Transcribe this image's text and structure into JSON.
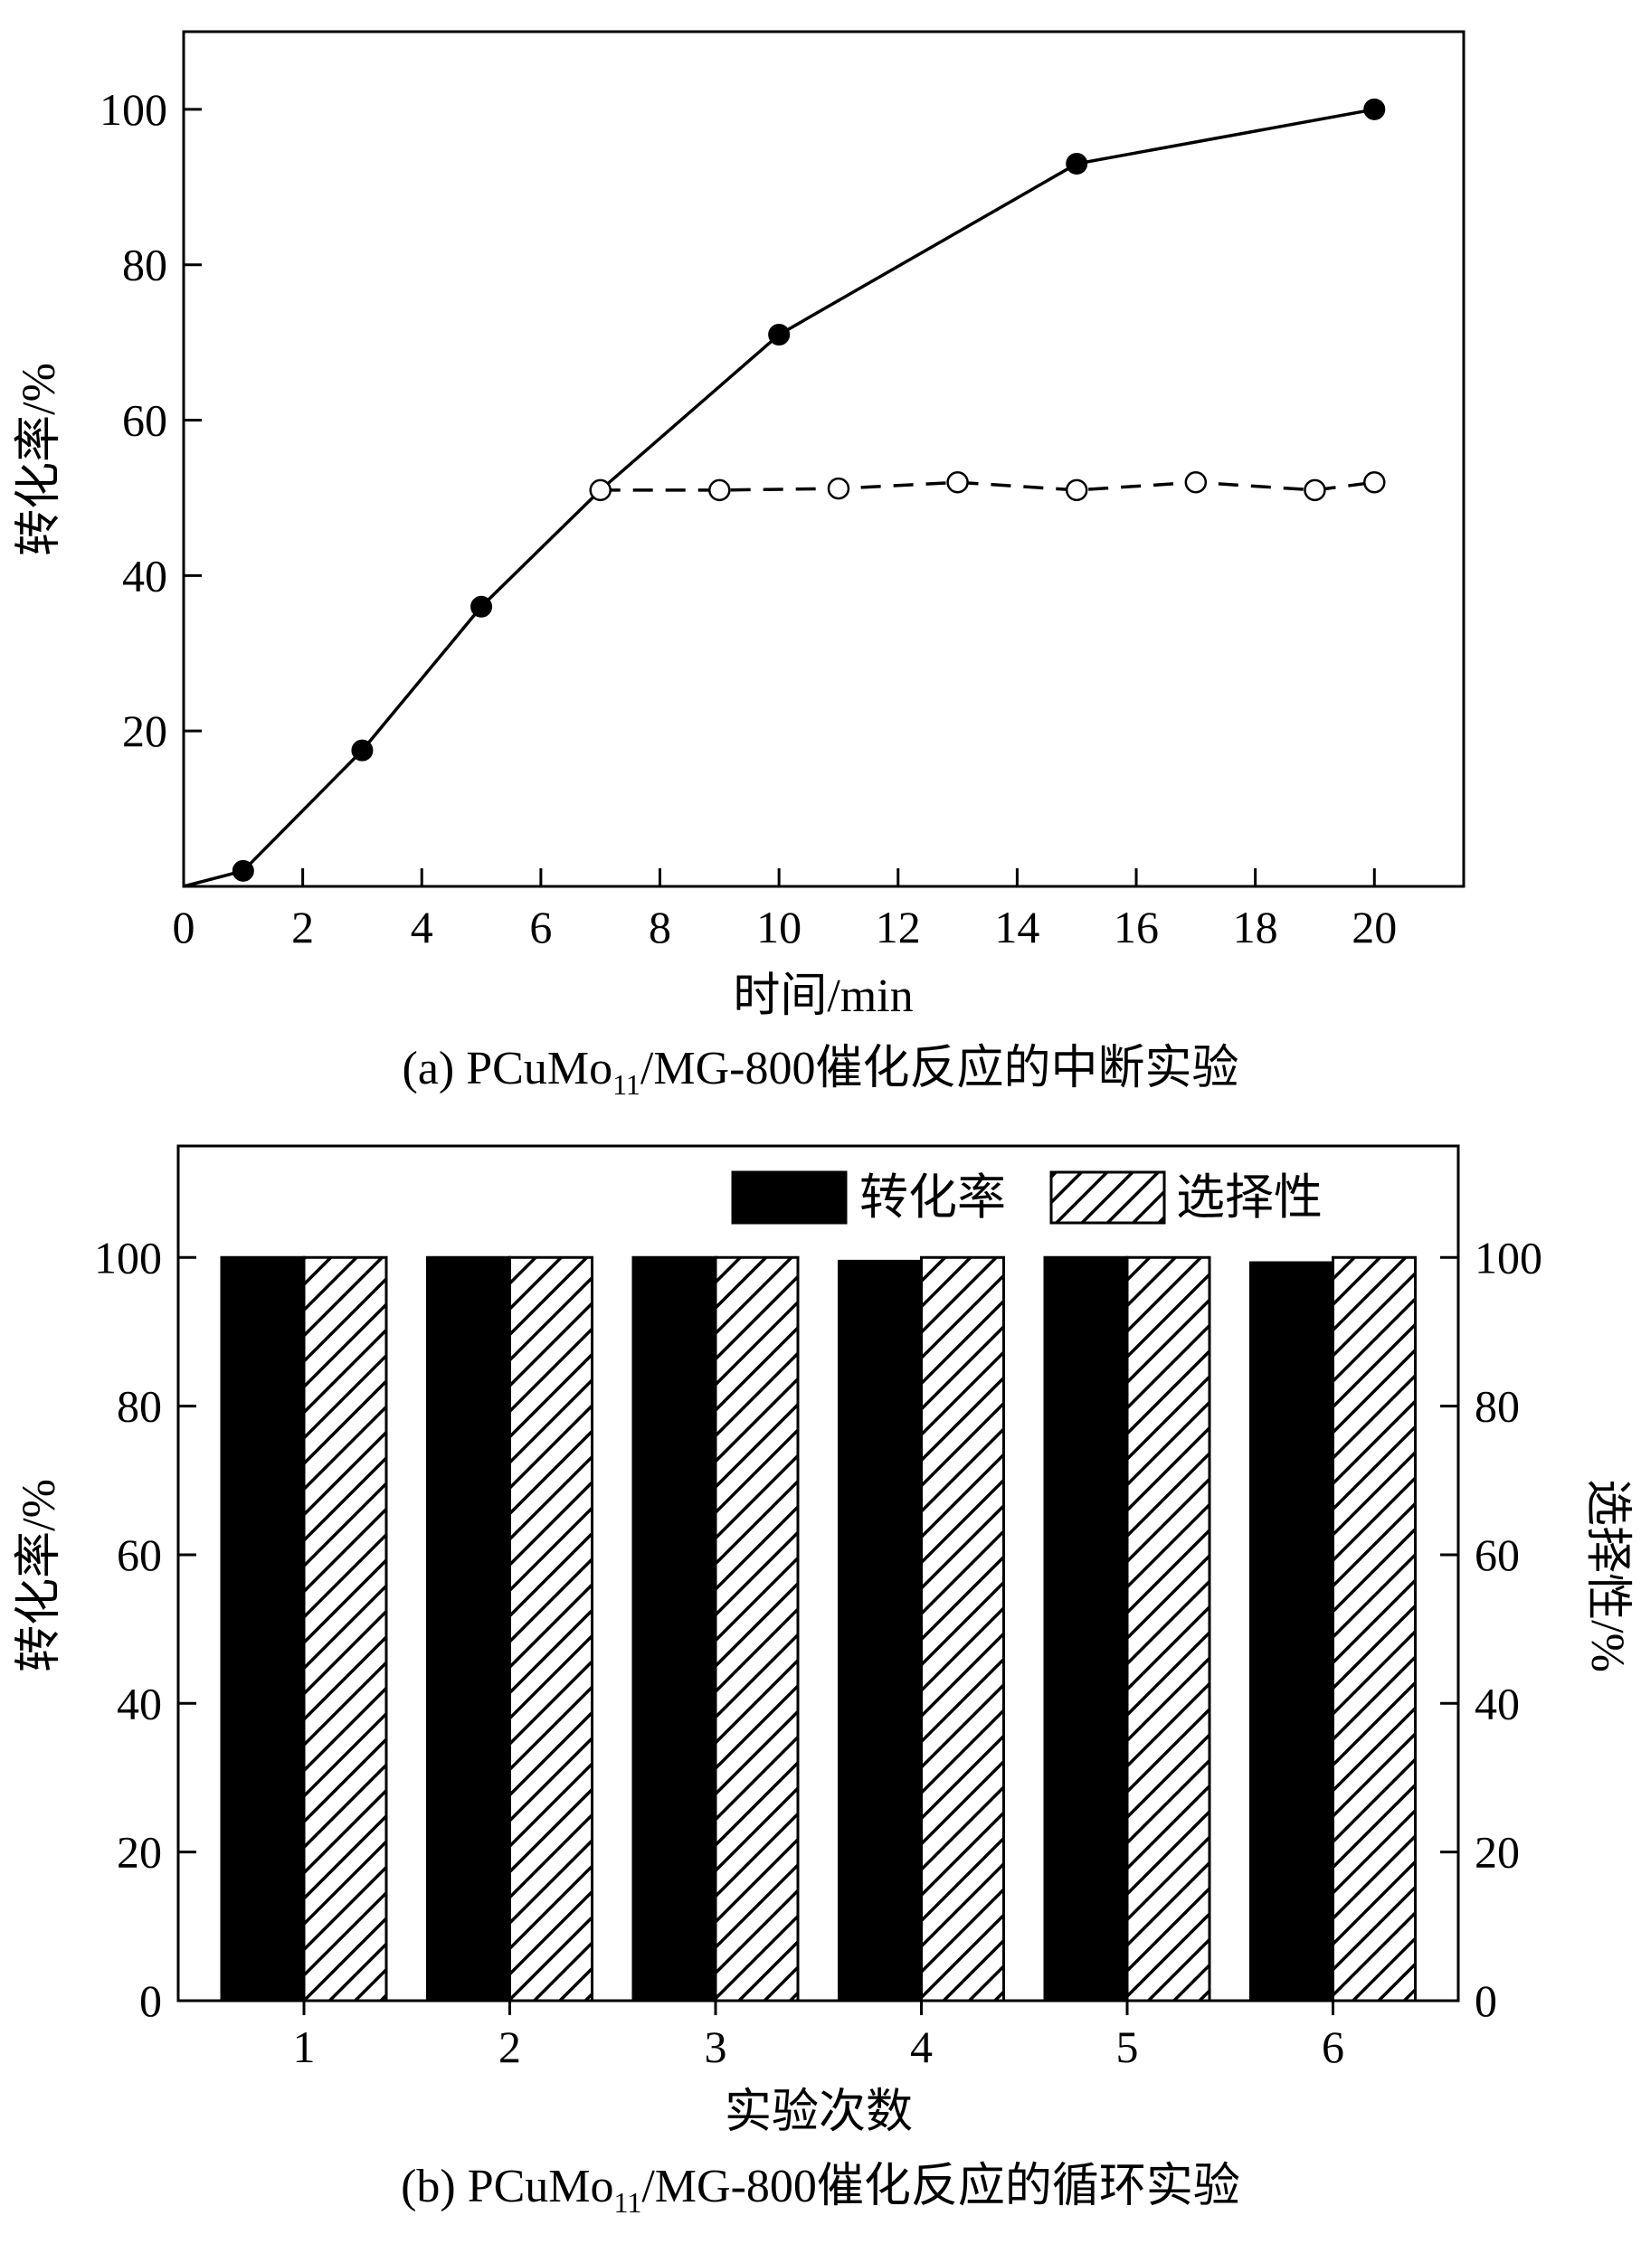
{
  "chart_data": [
    {
      "type": "line",
      "caption_prefix": "(a) PCuMo",
      "caption_subscript": "11",
      "caption_suffix": "/MG-800催化反应的中断实验",
      "xlabel": "时间/min",
      "ylabel": "转化率/%",
      "xlim": [
        0,
        21.5
      ],
      "ylim": [
        0,
        110
      ],
      "xticks": [
        "0",
        "2",
        "4",
        "6",
        "8",
        "10",
        "12",
        "14",
        "16",
        "18",
        "20"
      ],
      "yticks": [
        "20",
        "40",
        "60",
        "80",
        "100"
      ],
      "grid": false,
      "series": [
        {
          "style": "solid line, filled circles",
          "x": [
            0,
            1,
            3,
            5,
            7,
            10,
            15,
            20
          ],
          "y": [
            0,
            2,
            17.5,
            36,
            51,
            71,
            93,
            100
          ],
          "markers": [
            false,
            true,
            true,
            true,
            false,
            true,
            true,
            true
          ]
        },
        {
          "style": "dashed line, open circles",
          "x": [
            7,
            9,
            11,
            13,
            15,
            17,
            19,
            20
          ],
          "y": [
            51,
            51,
            51.2,
            52,
            51,
            52,
            51,
            52
          ]
        }
      ]
    },
    {
      "type": "bar",
      "caption_prefix": "(b) PCuMo",
      "caption_subscript": "11",
      "caption_suffix": "/MG-800催化反应的循环实验",
      "xlabel": "实验次数",
      "ylabel_left": "转化率/%",
      "ylabel_right": "选择性/%",
      "categories": [
        "1",
        "2",
        "3",
        "4",
        "5",
        "6"
      ],
      "ylim": [
        0,
        115
      ],
      "yticks": [
        "0",
        "20",
        "40",
        "60",
        "80",
        "100"
      ],
      "grid": false,
      "legend_position": "top-right",
      "series": [
        {
          "name": "转化率",
          "fill": "solid black",
          "values": [
            100,
            100,
            100,
            99.5,
            100,
            99.3
          ]
        },
        {
          "name": "选择性",
          "fill": "diagonal hatch",
          "values": [
            100,
            100,
            100,
            100,
            100,
            100
          ]
        }
      ]
    }
  ]
}
